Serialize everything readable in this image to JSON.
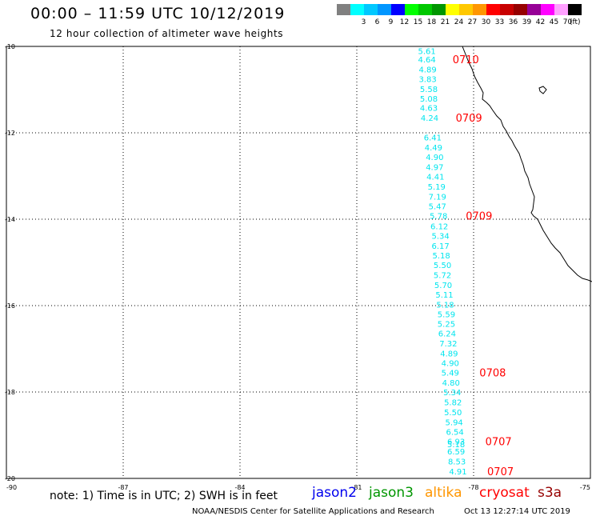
{
  "header": {
    "title": "00:00 – 11:59 UTC 10/12/2019",
    "subtitle": "12 hour collection of altimeter wave heights"
  },
  "legend": {
    "items": [
      {
        "label": "",
        "color": "#808080"
      },
      {
        "label": "3",
        "color": "#00ffff"
      },
      {
        "label": "6",
        "color": "#00c8ff"
      },
      {
        "label": "9",
        "color": "#0096ff"
      },
      {
        "label": "12",
        "color": "#0000ff"
      },
      {
        "label": "15",
        "color": "#00ff00"
      },
      {
        "label": "18",
        "color": "#00c800"
      },
      {
        "label": "21",
        "color": "#009600"
      },
      {
        "label": "24",
        "color": "#ffff00"
      },
      {
        "label": "27",
        "color": "#ffc800"
      },
      {
        "label": "30",
        "color": "#ff9600"
      },
      {
        "label": "33",
        "color": "#ff0000"
      },
      {
        "label": "36",
        "color": "#c80000"
      },
      {
        "label": "39",
        "color": "#960000"
      },
      {
        "label": "42",
        "color": "#960096"
      },
      {
        "label": "45",
        "color": "#ff00ff"
      },
      {
        "label": "70",
        "color": "#ffa0ff"
      },
      {
        "label": "",
        "color": "#000000"
      }
    ],
    "unit": "(ft)"
  },
  "map": {
    "lat_labels": [
      "-10",
      "-12",
      "-14",
      "-16",
      "-18",
      "-20"
    ],
    "lon_labels": [
      "-90",
      "-87",
      "-84",
      "-81",
      "-78",
      "-75"
    ],
    "lon_range": [
      -90,
      -75
    ],
    "lat_range": [
      -20,
      -10
    ],
    "track_color": "#00e5ee",
    "time_color": "#ff0000",
    "track_points": [
      {
        "lon": -79.2,
        "lat": -10.1,
        "swh": "5.61"
      },
      {
        "lon": -79.2,
        "lat": -10.3,
        "swh": "4.64"
      },
      {
        "lon": -79.18,
        "lat": -10.53,
        "swh": "4.89"
      },
      {
        "lon": -79.18,
        "lat": -10.75,
        "swh": "3.83"
      },
      {
        "lon": -79.15,
        "lat": -10.98,
        "swh": "5.58"
      },
      {
        "lon": -79.15,
        "lat": -11.2,
        "swh": "5.08"
      },
      {
        "lon": -79.15,
        "lat": -11.42,
        "swh": "4.63"
      },
      {
        "lon": -79.13,
        "lat": -11.65,
        "swh": "4.24"
      },
      {
        "lon": -79.05,
        "lat": -12.1,
        "swh": "6.41"
      },
      {
        "lon": -79.03,
        "lat": -12.33,
        "swh": "4.49"
      },
      {
        "lon": -79.0,
        "lat": -12.56,
        "swh": "4.90"
      },
      {
        "lon": -79.0,
        "lat": -12.79,
        "swh": "4.97"
      },
      {
        "lon": -78.98,
        "lat": -13.01,
        "swh": "4.41"
      },
      {
        "lon": -78.95,
        "lat": -13.24,
        "swh": "5.19"
      },
      {
        "lon": -78.93,
        "lat": -13.47,
        "swh": "7.19"
      },
      {
        "lon": -78.93,
        "lat": -13.69,
        "swh": "5.47"
      },
      {
        "lon": -78.9,
        "lat": -13.92,
        "swh": "5.78"
      },
      {
        "lon": -78.88,
        "lat": -14.16,
        "swh": "6.12"
      },
      {
        "lon": -78.85,
        "lat": -14.38,
        "swh": "5.34"
      },
      {
        "lon": -78.85,
        "lat": -14.61,
        "swh": "6.17"
      },
      {
        "lon": -78.83,
        "lat": -14.83,
        "swh": "5.18"
      },
      {
        "lon": -78.8,
        "lat": -15.06,
        "swh": "5.50"
      },
      {
        "lon": -78.8,
        "lat": -15.29,
        "swh": "5.72"
      },
      {
        "lon": -78.78,
        "lat": -15.52,
        "swh": "5.70"
      },
      {
        "lon": -78.75,
        "lat": -15.74,
        "swh": "5.11"
      },
      {
        "lon": -78.73,
        "lat": -15.97,
        "swh": "5.18"
      },
      {
        "lon": -78.7,
        "lat": -16.19,
        "swh": "5.59"
      },
      {
        "lon": -78.7,
        "lat": -16.42,
        "swh": "5.25"
      },
      {
        "lon": -78.68,
        "lat": -16.64,
        "swh": "6.24"
      },
      {
        "lon": -78.65,
        "lat": -16.87,
        "swh": "7.32"
      },
      {
        "lon": -78.63,
        "lat": -17.1,
        "swh": "4.89"
      },
      {
        "lon": -78.6,
        "lat": -17.32,
        "swh": "4.90"
      },
      {
        "lon": -78.6,
        "lat": -17.55,
        "swh": "5.49"
      },
      {
        "lon": -78.58,
        "lat": -17.78,
        "swh": "4.80"
      },
      {
        "lon": -78.55,
        "lat": -18.0,
        "swh": "5.34"
      },
      {
        "lon": -78.53,
        "lat": -18.23,
        "swh": "5.82"
      },
      {
        "lon": -78.53,
        "lat": -18.46,
        "swh": "5.50"
      },
      {
        "lon": -78.5,
        "lat": -18.69,
        "swh": "5.94"
      },
      {
        "lon": -78.48,
        "lat": -18.92,
        "swh": "6.54"
      },
      {
        "lon": -78.45,
        "lat": -19.14,
        "swh": "6.93"
      },
      {
        "lon": -78.45,
        "lat": -19.2,
        "swh": "5.18"
      },
      {
        "lon": -78.45,
        "lat": -19.37,
        "swh": "6.59"
      },
      {
        "lon": -78.43,
        "lat": -19.6,
        "swh": "8.53"
      },
      {
        "lon": -78.4,
        "lat": -19.83,
        "swh": "4.91"
      }
    ],
    "time_labels": [
      {
        "lon": -78.2,
        "lat": -10.3,
        "text": "0710"
      },
      {
        "lon": -78.12,
        "lat": -11.65,
        "text": "0709"
      },
      {
        "lon": -77.86,
        "lat": -13.92,
        "text": "0709"
      },
      {
        "lon": -77.51,
        "lat": -17.55,
        "text": "0708"
      },
      {
        "lon": -77.36,
        "lat": -19.14,
        "text": "0707"
      },
      {
        "lon": -77.31,
        "lat": -19.83,
        "text": "0707"
      }
    ]
  },
  "footer": {
    "note": "note:  1) Time is in UTC;  2) SWH is in feet",
    "satellites": [
      {
        "name": "jason2",
        "color": "#0000ee"
      },
      {
        "name": "jason3",
        "color": "#009600"
      },
      {
        "name": "altika",
        "color": "#ff9600"
      },
      {
        "name": "cryosat",
        "color": "#ff0000"
      },
      {
        "name": "s3a",
        "color": "#960000"
      }
    ],
    "credit": "NOAA/NESDIS Center for Satellite Applications and Research",
    "timestamp": "Oct 13 12:27:14 UTC 2019"
  }
}
